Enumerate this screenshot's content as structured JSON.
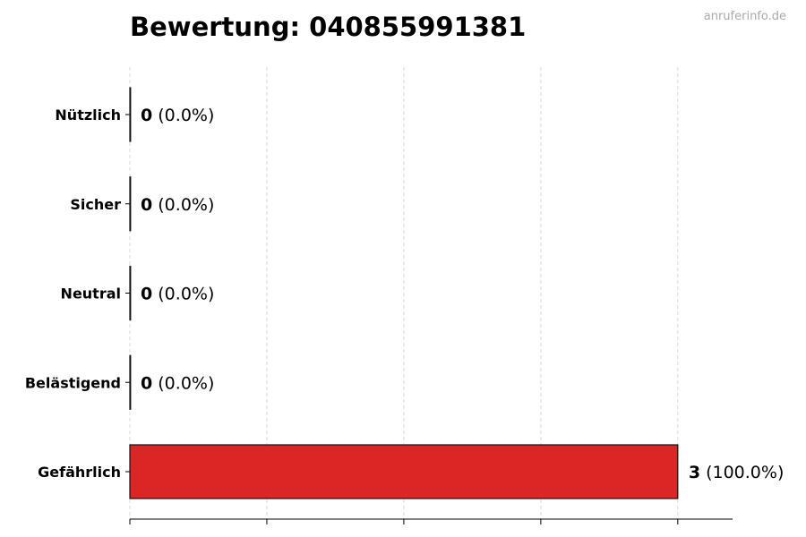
{
  "watermark": "anruferinfo.de",
  "chart_data": {
    "type": "bar",
    "orientation": "horizontal",
    "title": "Bewertung: 040855991381",
    "categories": [
      "Nützlich",
      "Sicher",
      "Neutral",
      "Belästigend",
      "Gefährlich"
    ],
    "values": [
      0,
      0,
      0,
      0,
      3
    ],
    "value_labels": [
      "0",
      "0",
      "0",
      "0",
      "3"
    ],
    "percent_labels": [
      "(0.0%)",
      "(0.0%)",
      "(0.0%)",
      "(0.0%)",
      "(100.0%)"
    ],
    "colors": [
      "#4caf50",
      "#2196f3",
      "#9e9e9e",
      "#ff9800",
      "#dc2626"
    ],
    "xlim": [
      0,
      3.3
    ],
    "xticks": [
      0,
      0.75,
      1.5,
      2.25,
      3
    ],
    "grid": true,
    "xlabel": "",
    "ylabel": ""
  }
}
